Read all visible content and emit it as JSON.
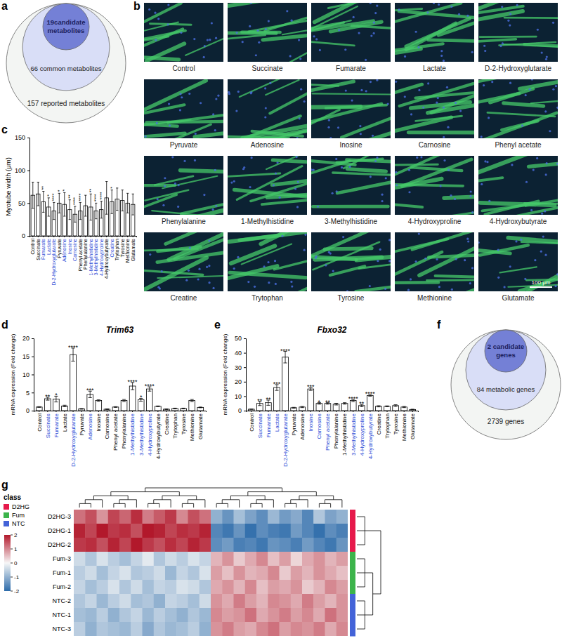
{
  "panel_labels": [
    "a",
    "b",
    "c",
    "d",
    "e",
    "f",
    "g"
  ],
  "panel_a": {
    "inner": [
      "19candidate",
      "metabolites"
    ],
    "middle": "66 common metabolites",
    "outer": "157 reported metabolites"
  },
  "panel_b": {
    "images": [
      "Control",
      "Succinate",
      "Fumarate",
      "Lactate",
      "D-2-Hydroxyglutarate",
      "Pyruvate",
      "Adenosine",
      "Inosine",
      "Carnosine",
      "Phenyl acetate",
      "Phenylalanine",
      "1-Methylhistidine",
      "3-Methylhistidine",
      "4-Hydroxyproline",
      "4-Hydroxybutyrate",
      "Creatine",
      "Trytophan",
      "Tyrosine",
      "Methionine",
      "Glutamate"
    ],
    "scale_bar": "100 μm"
  },
  "panel_f": {
    "inner": [
      "2 candidate",
      "genes"
    ],
    "middle": "84 metabolic genes",
    "outer": "2739 genes"
  },
  "chart_data": [
    {
      "type": "bar",
      "y_label": "Myotube width (μm)",
      "color": "#ffffff",
      "categories": [
        "Control",
        "Succinate",
        "Fumarate",
        "Lactate",
        "D-2-Hydroxyglutarate",
        "Pyruvate",
        "Adenosine",
        "Inosine",
        "Carnosine",
        "Phenyl acetate",
        "Phenylalanine",
        "1-Methylhistidine",
        "3-Methylhistidine",
        "4-Hydroxyproline",
        "4-Hydroxybutyrate",
        "Creatine",
        "Trytophan",
        "Tyrosine",
        "Methionine",
        "Glutamate"
      ],
      "values": [
        62,
        64,
        52,
        44,
        38,
        50,
        48,
        40,
        33,
        38,
        46,
        44,
        38,
        40,
        58,
        52,
        56,
        54,
        50,
        48
      ],
      "errors": [
        20,
        18,
        16,
        14,
        13,
        15,
        18,
        15,
        12,
        13,
        16,
        20,
        12,
        13,
        25,
        18,
        17,
        16,
        15,
        16
      ],
      "annotations": [
        null,
        null,
        "**",
        "*",
        "****",
        "*",
        "*",
        "**",
        "****",
        "****",
        null,
        "**",
        "****",
        "****",
        null,
        "*",
        null,
        null,
        null,
        null
      ],
      "highlight": [
        false,
        false,
        true,
        true,
        true,
        false,
        true,
        true,
        true,
        false,
        false,
        true,
        true,
        true,
        false,
        true,
        false,
        false,
        false,
        false
      ],
      "ylim": [
        0,
        150
      ],
      "yticks": [
        0,
        50,
        100,
        150
      ]
    },
    {
      "type": "bar",
      "title": "Trim63",
      "y_label": "mRNA expression (Fold change)",
      "color": "#ffffff",
      "categories": [
        "Control",
        "Succinate",
        "Fumarate",
        "Lactate",
        "D-2-Hydroxyglutarate",
        "Pyruvate",
        "Adenosine",
        "Inosine",
        "Carnosine",
        "Phenyl acetate",
        "Phenylalanine",
        "1-Methylhistidine",
        "3-Methylhistidine",
        "4-Hydroxyproline",
        "4-Hydroxybutyrate",
        "Creatine",
        "Trytophan",
        "Tyrosine",
        "Methionine",
        "Glutamate"
      ],
      "values": [
        1,
        3.3,
        3.2,
        1.3,
        15.5,
        0.5,
        4.5,
        2.8,
        0.4,
        1,
        2.8,
        6.8,
        3,
        6,
        1.2,
        0.4,
        0.6,
        0.6,
        2.8,
        0.9
      ],
      "errors": [
        0.1,
        0.4,
        0.8,
        0.2,
        1.8,
        0.1,
        0.9,
        0.2,
        0.1,
        0.1,
        0.3,
        1,
        0.4,
        0.6,
        0.1,
        0.1,
        0.1,
        0.1,
        0.3,
        0.1
      ],
      "annotations": [
        null,
        "**",
        "*",
        null,
        "****",
        null,
        "***",
        null,
        null,
        null,
        null,
        "****",
        "*",
        "****",
        null,
        null,
        null,
        null,
        null,
        null
      ],
      "highlight": [
        false,
        true,
        true,
        false,
        true,
        false,
        true,
        false,
        false,
        false,
        false,
        true,
        true,
        true,
        false,
        false,
        false,
        false,
        false,
        false
      ],
      "ylim": [
        0,
        20
      ],
      "yticks": [
        0,
        5,
        10,
        15,
        20
      ]
    },
    {
      "type": "bar",
      "title": "Fbxo32",
      "y_label": "mRNA expression (Fold change)",
      "color": "#ffffff",
      "categories": [
        "Control",
        "Succinate",
        "Fumarate",
        "Lactate",
        "D-2-Hydroxyglutarate",
        "Pyruvate",
        "Adenosine",
        "Inosine",
        "Carnosine",
        "Phenyl acetate",
        "Phenylalanine",
        "1-Methylhistidine",
        "3-Methylhistidine",
        "4-Hydroxyproline",
        "4-Hydroxybutyrate",
        "Creatine",
        "Trytophan",
        "Tyrosine",
        "Methionine",
        "Glutamate"
      ],
      "values": [
        1,
        5,
        5.5,
        16,
        37,
        2,
        2.5,
        15,
        5,
        5,
        4.5,
        5,
        7,
        3.5,
        10.5,
        3,
        3,
        3.5,
        2.5,
        0.8
      ],
      "errors": [
        0.1,
        1.5,
        1.8,
        2,
        4,
        0.3,
        0.4,
        1,
        0.5,
        0.5,
        0.6,
        0.5,
        0.8,
        0.8,
        0.5,
        0.4,
        0.3,
        0.6,
        0.4,
        0.2
      ],
      "annotations": [
        null,
        "**",
        "**",
        "***",
        "****",
        null,
        null,
        "***",
        "*",
        "**",
        null,
        null,
        "****",
        "**",
        "****",
        null,
        null,
        null,
        null,
        null
      ],
      "highlight": [
        false,
        true,
        true,
        true,
        true,
        false,
        false,
        true,
        true,
        true,
        false,
        false,
        true,
        true,
        true,
        false,
        false,
        false,
        false,
        false
      ],
      "ylim": [
        0,
        50
      ],
      "yticks": [
        0,
        10,
        20,
        30,
        40,
        50
      ]
    },
    {
      "type": "heatmap",
      "legend_title": "class",
      "classes": [
        {
          "name": "D2HG",
          "color": "#e6194b"
        },
        {
          "name": "Fum",
          "color": "#3cb44b"
        },
        {
          "name": "NTC",
          "color": "#4363d8"
        }
      ],
      "rows": [
        "D2HG-3",
        "D2HG-1",
        "D2HG-2",
        "Fum-3",
        "Fum-1",
        "Fum-2",
        "NTC-2",
        "NTC-1",
        "NTC-3"
      ],
      "row_classes": [
        "D2HG",
        "D2HG",
        "D2HG",
        "Fum",
        "Fum",
        "Fum",
        "NTC",
        "NTC",
        "NTC"
      ],
      "values": [
        [
          1.2,
          1.5,
          0.9,
          1.6,
          1.3,
          1.8,
          1.1,
          1.4,
          1.7,
          1.0,
          1.5,
          1.2,
          -1.0,
          -1.4,
          -0.8,
          -1.2,
          -1.5,
          -0.9,
          -1.3,
          -1.1,
          -1.6,
          -0.7,
          -1.2,
          -1.0
        ],
        [
          1.9,
          1.6,
          2.0,
          1.7,
          1.8,
          1.5,
          2.0,
          1.9,
          1.6,
          1.8,
          1.7,
          1.9,
          -1.6,
          -1.8,
          -1.4,
          -1.9,
          -1.5,
          -1.7,
          -1.8,
          -1.3,
          -1.6,
          -1.9,
          -1.5,
          -1.7
        ],
        [
          1.7,
          1.8,
          1.5,
          1.9,
          1.6,
          2.0,
          1.7,
          1.5,
          1.8,
          1.6,
          1.9,
          1.7,
          -1.5,
          -1.3,
          -1.7,
          -1.6,
          -1.8,
          -1.4,
          -1.5,
          -1.7,
          -1.3,
          -1.6,
          -1.8,
          -1.4
        ],
        [
          -0.4,
          -0.7,
          -0.3,
          -0.6,
          -0.8,
          -0.5,
          -0.2,
          -0.7,
          -0.4,
          -0.6,
          -0.3,
          -0.5,
          0.6,
          0.9,
          0.4,
          0.7,
          1.0,
          0.5,
          0.8,
          0.3,
          0.7,
          0.9,
          0.6,
          0.8
        ],
        [
          -0.6,
          -0.4,
          -0.8,
          -0.5,
          -0.3,
          -0.7,
          -0.6,
          -0.4,
          -0.9,
          -0.5,
          -0.7,
          -0.3,
          0.8,
          0.5,
          0.9,
          0.6,
          0.7,
          1.0,
          0.4,
          0.8,
          0.6,
          0.9,
          0.7,
          0.5
        ],
        [
          -0.5,
          -0.8,
          -0.6,
          -0.3,
          -0.7,
          -0.4,
          -0.8,
          -0.5,
          -0.6,
          -0.3,
          -0.4,
          -0.7,
          0.7,
          0.9,
          0.6,
          1.0,
          0.5,
          0.8,
          0.7,
          0.9,
          0.4,
          0.6,
          1.0,
          0.8
        ],
        [
          -0.7,
          -0.5,
          -0.9,
          -0.6,
          -0.4,
          -0.8,
          -0.7,
          -1.0,
          -0.5,
          -0.6,
          -0.8,
          -0.4,
          0.9,
          0.7,
          1.1,
          0.8,
          0.6,
          1.0,
          0.9,
          0.7,
          1.1,
          0.8,
          0.6,
          0.9
        ],
        [
          -0.8,
          -0.9,
          -0.6,
          -1.0,
          -0.7,
          -0.5,
          -0.9,
          -0.6,
          -0.8,
          -1.0,
          -0.7,
          -0.9,
          1.0,
          0.8,
          0.9,
          1.2,
          0.7,
          0.9,
          1.1,
          0.8,
          1.0,
          0.7,
          1.2,
          0.9
        ],
        [
          -0.6,
          -1.0,
          -0.7,
          -0.8,
          -0.9,
          -0.6,
          -1.1,
          -0.7,
          -0.9,
          -0.8,
          -0.6,
          -1.0,
          0.9,
          1.1,
          0.8,
          0.7,
          1.0,
          1.2,
          0.8,
          1.0,
          0.9,
          1.1,
          0.7,
          1.0
        ]
      ],
      "color_range": [
        -2,
        2
      ],
      "color_ticks": [
        2,
        1,
        0,
        -1,
        -2
      ]
    }
  ]
}
